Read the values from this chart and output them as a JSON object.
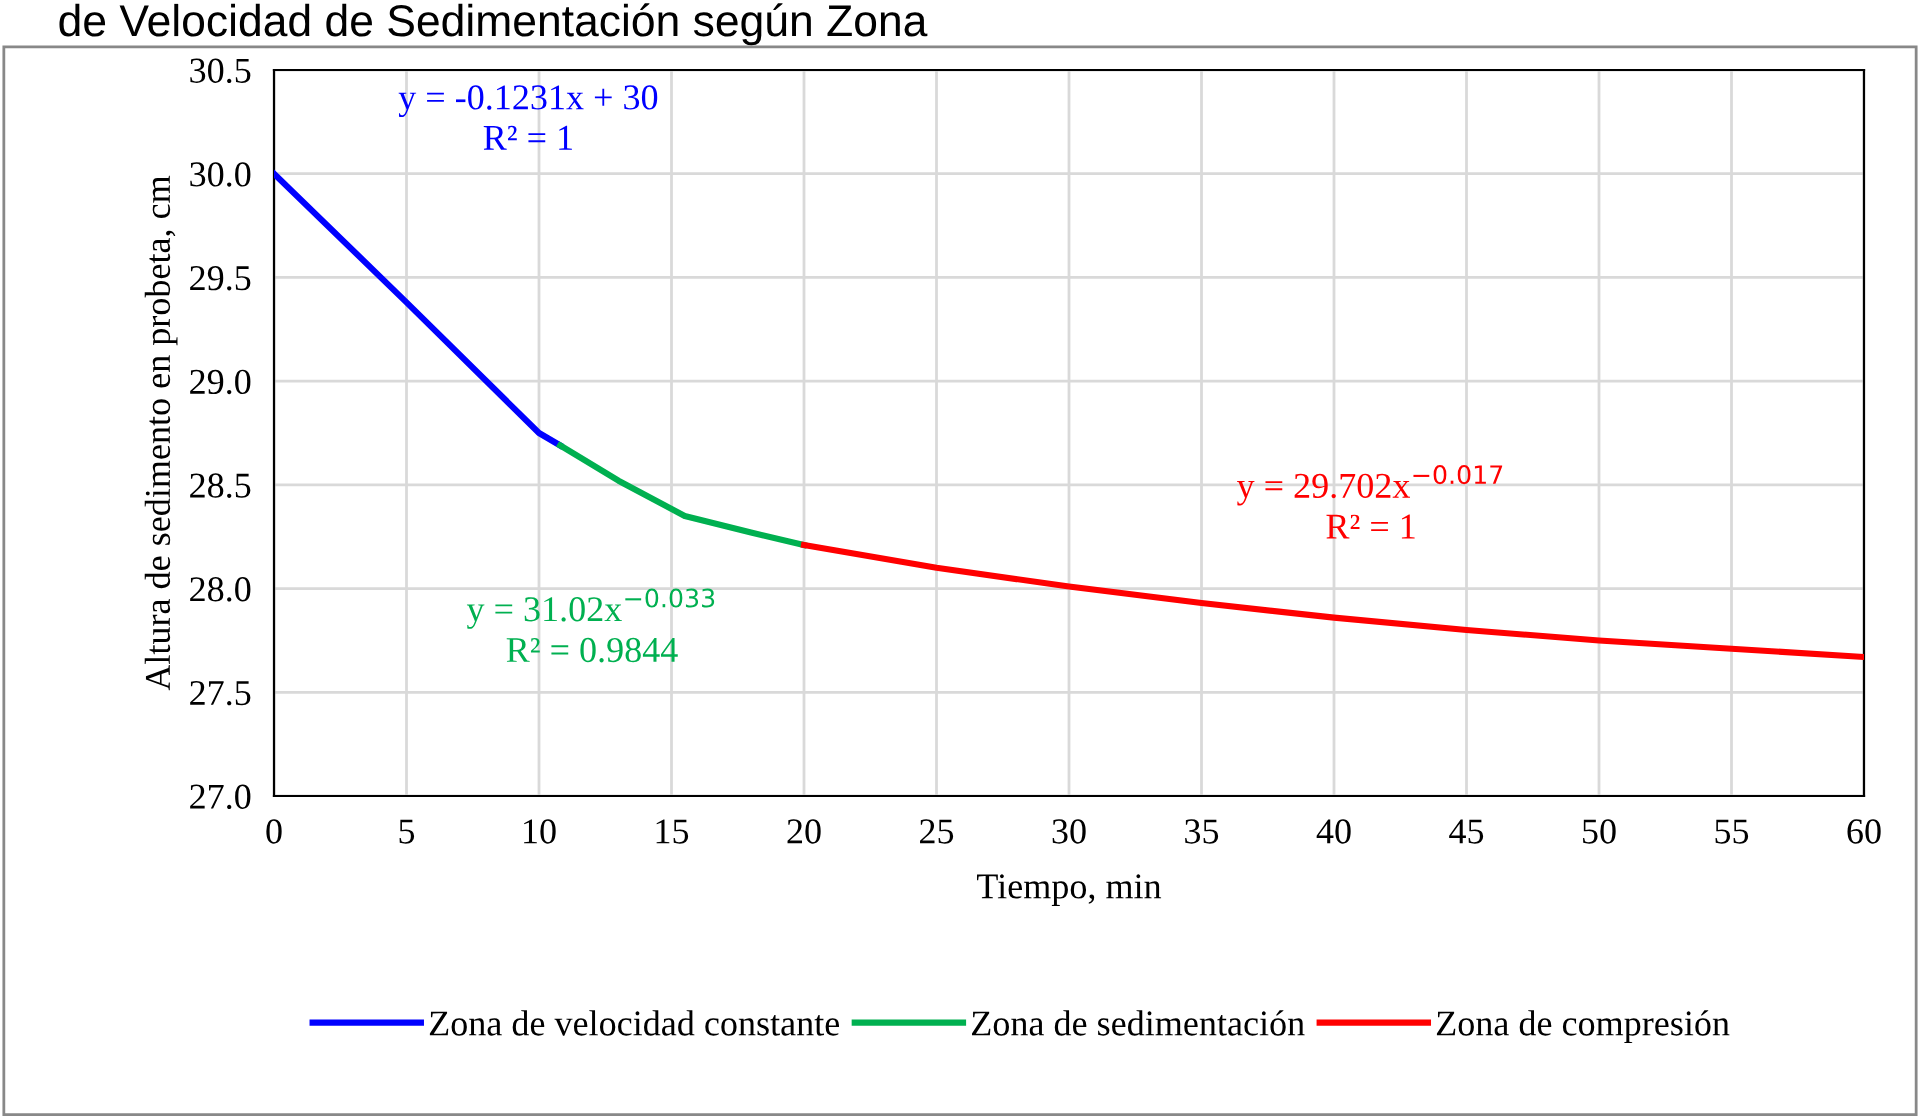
{
  "chart_data": {
    "type": "line",
    "title": "de Velocidad de Sedimentación según Zona",
    "xlabel": "Tiempo, min",
    "ylabel": "Altura de sedimento en probeta, cm",
    "xlim": [
      0,
      60
    ],
    "xticks": [
      0,
      5,
      10,
      15,
      20,
      25,
      30,
      35,
      40,
      45,
      50,
      55,
      60
    ],
    "ylim": [
      27.0,
      30.5
    ],
    "yticks": [
      {
        "value": 27.0,
        "label": "27.0"
      },
      {
        "value": 27.5,
        "label": "27.5"
      },
      {
        "value": 28.0,
        "label": "28.0"
      },
      {
        "value": 28.5,
        "label": "28.5"
      },
      {
        "value": 29.0,
        "label": "29.0"
      },
      {
        "value": 29.5,
        "label": "29.5"
      },
      {
        "value": 30.0,
        "label": "30.0"
      },
      {
        "value": 30.5,
        "label": "30.5"
      }
    ],
    "grid": true,
    "legend": "bottom",
    "marker": "none",
    "line_style": "solid",
    "series": [
      {
        "name": "Zona de velocidad constante",
        "color": "#0000ff",
        "x": [
          0,
          5,
          10,
          10.8
        ],
        "values": [
          30.0,
          29.38,
          28.75,
          28.69
        ]
      },
      {
        "name": "Zona de sedimentación",
        "color": "#00b050",
        "x": [
          10.8,
          13,
          15.5,
          18,
          20
        ],
        "values": [
          28.69,
          28.52,
          28.35,
          28.27,
          28.21
        ]
      },
      {
        "name": "Zona de compresión",
        "color": "#ff0000",
        "x": [
          20,
          25,
          30,
          35,
          40,
          45,
          50,
          55,
          60
        ],
        "values": [
          28.21,
          28.1,
          28.01,
          27.93,
          27.86,
          27.8,
          27.75,
          27.71,
          27.67
        ]
      }
    ],
    "annotations": [
      "y = -0.1231x + 30\nR² = 1",
      "y = 31.02x$^{−0.033}$\nR² = 0.9844",
      "y = 29.702x$^{−0.017}$\nR² = 1"
    ]
  }
}
